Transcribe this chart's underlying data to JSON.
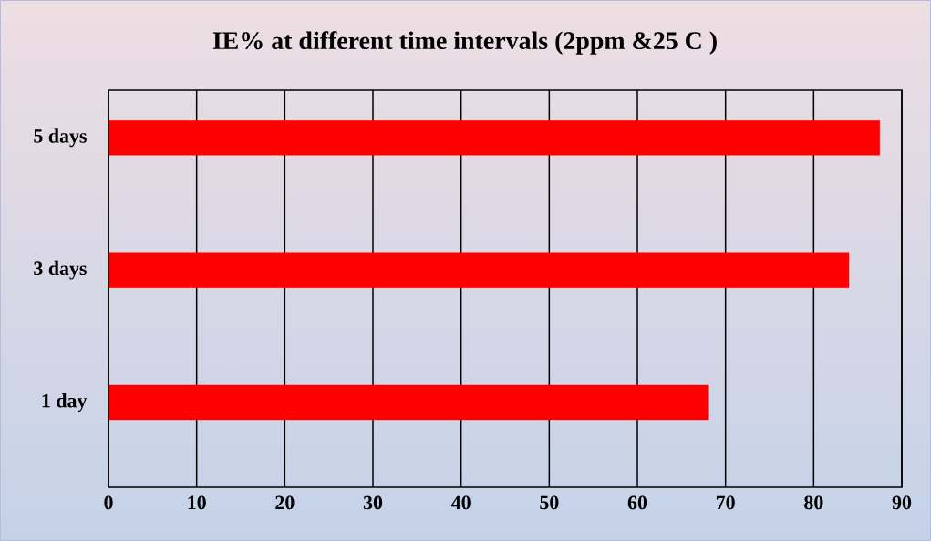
{
  "chart_data": {
    "type": "bar",
    "orientation": "horizontal",
    "title": "IE% at different time intervals  (2ppm &25 C )",
    "categories": [
      "5 days",
      "3 days",
      "1 day"
    ],
    "values": [
      87.5,
      84.0,
      68.0
    ],
    "color": "#ff0000",
    "xlim": [
      0,
      90
    ],
    "xticks": [
      0,
      10,
      20,
      30,
      40,
      50,
      60,
      70,
      80,
      90
    ],
    "grid": "x"
  }
}
